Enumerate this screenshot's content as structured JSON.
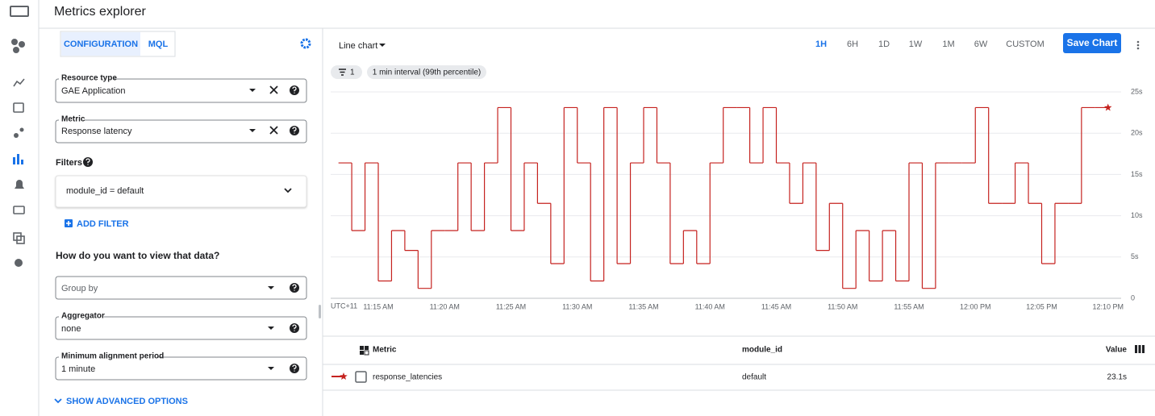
{
  "app_bar": {
    "title": "Metrics explorer"
  },
  "config": {
    "tabs": [
      "CONFIGURATION",
      "MQL"
    ],
    "resource_type": {
      "label": "Resource type",
      "value": "GAE Application"
    },
    "metric": {
      "label": "Metric",
      "value": "Response latency"
    },
    "filters": {
      "title": "Filters",
      "items": [
        "module_id = default"
      ],
      "add": "ADD FILTER"
    },
    "view_heading": "How do you want to view that data?",
    "group_by": {
      "placeholder": "Group by"
    },
    "aggregator": {
      "label": "Aggregator",
      "value": "none"
    },
    "alignment": {
      "label": "Minimum alignment period",
      "value": "1 minute"
    },
    "advanced": "SHOW ADVANCED OPTIONS"
  },
  "toolbar": {
    "chart_type": "Line chart",
    "ranges": [
      "1H",
      "6H",
      "1D",
      "1W",
      "1M",
      "6W",
      "CUSTOM"
    ],
    "active_range": "1H",
    "save": "Save Chart"
  },
  "chips": {
    "filter_count": "1",
    "interval": "1 min interval (99th percentile)"
  },
  "chart_data": {
    "type": "line",
    "step": true,
    "timezone": "UTC+11",
    "x": [
      "11:12 AM",
      "11:13 AM",
      "11:14 AM",
      "11:15 AM",
      "11:16 AM",
      "11:17 AM",
      "11:18 AM",
      "11:19 AM",
      "11:20 AM",
      "11:21 AM",
      "11:22 AM",
      "11:23 AM",
      "11:24 AM",
      "11:25 AM",
      "11:26 AM",
      "11:27 AM",
      "11:28 AM",
      "11:29 AM",
      "11:30 AM",
      "11:31 AM",
      "11:32 AM",
      "11:33 AM",
      "11:34 AM",
      "11:35 AM",
      "11:36 AM",
      "11:37 AM",
      "11:38 AM",
      "11:39 AM",
      "11:40 AM",
      "11:41 AM",
      "11:42 AM",
      "11:43 AM",
      "11:44 AM",
      "11:45 AM",
      "11:46 AM",
      "11:47 AM",
      "11:48 AM",
      "11:49 AM",
      "11:50 AM",
      "11:51 AM",
      "11:52 AM",
      "11:53 AM",
      "11:54 AM",
      "11:55 AM",
      "11:56 AM",
      "11:57 AM",
      "11:58 AM",
      "11:59 AM",
      "12:00 PM",
      "12:01 PM",
      "12:02 PM",
      "12:03 PM",
      "12:04 PM",
      "12:05 PM",
      "12:06 PM",
      "12:07 PM",
      "12:08 PM",
      "12:09 PM",
      "12:10 PM"
    ],
    "series": [
      {
        "name": "response_latencies",
        "color": "#c5221f",
        "values": [
          16.4,
          8.2,
          16.4,
          2.1,
          8.2,
          5.8,
          1.2,
          8.2,
          8.2,
          16.4,
          8.2,
          16.4,
          23.1,
          8.2,
          16.4,
          11.5,
          4.2,
          23.1,
          16.4,
          2.1,
          23.1,
          4.2,
          16.4,
          23.1,
          16.4,
          4.2,
          8.2,
          4.2,
          16.4,
          23.1,
          23.1,
          16.4,
          23.1,
          16.4,
          11.5,
          16.4,
          5.8,
          11.5,
          1.2,
          8.2,
          2.1,
          8.2,
          2.1,
          16.4,
          1.2,
          16.4,
          16.4,
          16.4,
          23.1,
          11.5,
          11.5,
          16.4,
          11.5,
          4.2,
          11.5,
          11.5,
          23.1,
          23.1,
          23.1
        ]
      }
    ],
    "xlim": [
      "11:11 AM",
      "12:11 PM"
    ],
    "xticks": [
      "11:15 AM",
      "11:20 AM",
      "11:25 AM",
      "11:30 AM",
      "11:35 AM",
      "11:40 AM",
      "11:45 AM",
      "11:50 AM",
      "11:55 AM",
      "12:00 PM",
      "12:05 PM",
      "12:10 PM"
    ],
    "ylim": [
      0,
      25
    ],
    "yticks": [
      0,
      {
        "value": 5,
        "label": "5s"
      },
      {
        "value": 10,
        "label": "10s"
      },
      {
        "value": 15,
        "label": "15s"
      },
      {
        "value": 20,
        "label": "20s"
      },
      {
        "value": 25,
        "label": "25s"
      }
    ],
    "grid": true
  },
  "table": {
    "headers": [
      "Metric",
      "module_id",
      "Value"
    ],
    "rows": [
      {
        "module_id": "default",
        "value": "23.1s"
      }
    ]
  }
}
